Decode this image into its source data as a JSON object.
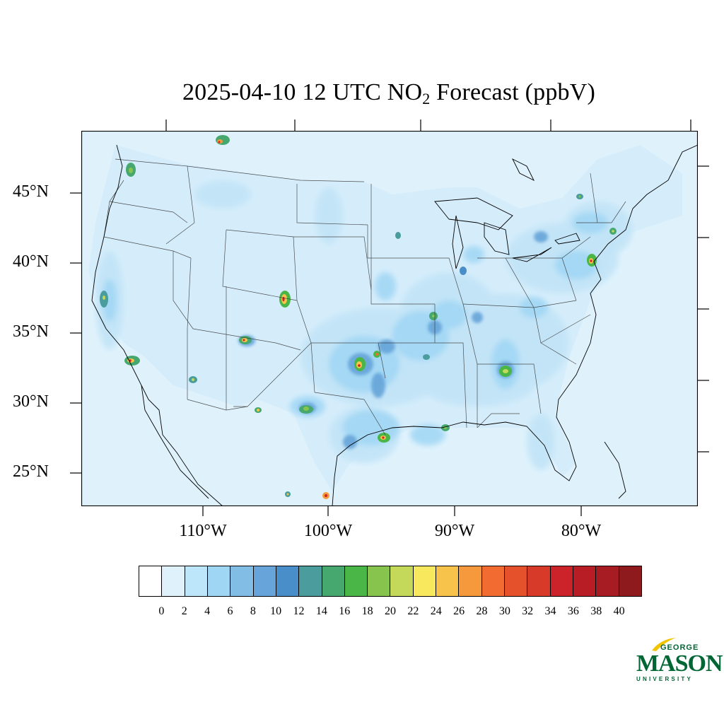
{
  "title": {
    "prefix": "2025-04-10 12 UTC NO",
    "subscript": "2",
    "suffix": " Forecast (ppbV)"
  },
  "map": {
    "background_color": "#dff2fc",
    "land_fill": "#cfe9f9",
    "lat_labels": [
      "45°N",
      "40°N",
      "35°N",
      "30°N",
      "25°N"
    ],
    "lon_labels": [
      "110°W",
      "100°W",
      "90°W",
      "80°W"
    ]
  },
  "colorbar": {
    "colors": [
      "#ffffff",
      "#dff2fc",
      "#bde6fa",
      "#9fd6f4",
      "#82bde6",
      "#66a4d9",
      "#4a8ec9",
      "#4a9d9c",
      "#46a86e",
      "#4ab648",
      "#86c44e",
      "#c4d85a",
      "#f7e85e",
      "#f7c34b",
      "#f5993c",
      "#f26b30",
      "#e5512b",
      "#d83a2a",
      "#cc2229",
      "#b81c25",
      "#a71b22",
      "#8f1a1d"
    ],
    "ticks": [
      "0",
      "2",
      "4",
      "6",
      "8",
      "10",
      "12",
      "14",
      "16",
      "18",
      "20",
      "22",
      "24",
      "26",
      "28",
      "30",
      "32",
      "34",
      "36",
      "38",
      "40"
    ]
  },
  "logo": {
    "line1": "GEORGE",
    "line2": "MASON",
    "line3": "UNIVERSITY",
    "color": "#006633",
    "accent": "#f2c400"
  }
}
